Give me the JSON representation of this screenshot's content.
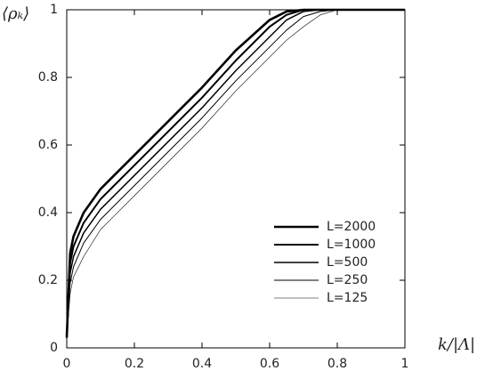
{
  "chart_data": {
    "type": "line",
    "x_label": "k/|Λ|",
    "y_label": "⟨ρₖ⟩",
    "x": [
      0,
      0.01,
      0.02,
      0.05,
      0.1,
      0.2,
      0.3,
      0.4,
      0.5,
      0.6,
      0.65,
      0.7,
      0.75,
      0.8,
      0.9,
      1
    ],
    "series": [
      {
        "name": "L=2000",
        "color": "#000000",
        "width": 2.6,
        "values": [
          0.03,
          0.28,
          0.33,
          0.4,
          0.47,
          0.57,
          0.67,
          0.77,
          0.88,
          0.97,
          0.995,
          1,
          1,
          1,
          1,
          1
        ]
      },
      {
        "name": "L=1000",
        "color": "#000000",
        "width": 2.0,
        "values": [
          0.03,
          0.25,
          0.3,
          0.37,
          0.44,
          0.54,
          0.64,
          0.74,
          0.85,
          0.95,
          0.985,
          1,
          1,
          1,
          1,
          1
        ]
      },
      {
        "name": "L=500",
        "color": "#000000",
        "width": 1.5,
        "values": [
          0.03,
          0.22,
          0.27,
          0.34,
          0.41,
          0.51,
          0.61,
          0.71,
          0.82,
          0.92,
          0.97,
          0.995,
          1,
          1,
          1,
          1
        ]
      },
      {
        "name": "L=250",
        "color": "#000000",
        "width": 1.0,
        "values": [
          0.03,
          0.19,
          0.24,
          0.31,
          0.38,
          0.48,
          0.58,
          0.68,
          0.79,
          0.89,
          0.94,
          0.98,
          0.995,
          1,
          1,
          1
        ]
      },
      {
        "name": "L=125",
        "color": "#000000",
        "width": 0.6,
        "values": [
          0.03,
          0.16,
          0.21,
          0.27,
          0.35,
          0.45,
          0.55,
          0.65,
          0.76,
          0.86,
          0.91,
          0.95,
          0.985,
          1,
          1,
          1
        ]
      }
    ],
    "xlim": [
      0,
      1
    ],
    "ylim": [
      0,
      1
    ],
    "xticks": [
      0,
      0.2,
      0.4,
      0.6,
      0.8,
      1
    ],
    "yticks": [
      0,
      0.2,
      0.4,
      0.6,
      0.8,
      1
    ],
    "grid": false
  }
}
